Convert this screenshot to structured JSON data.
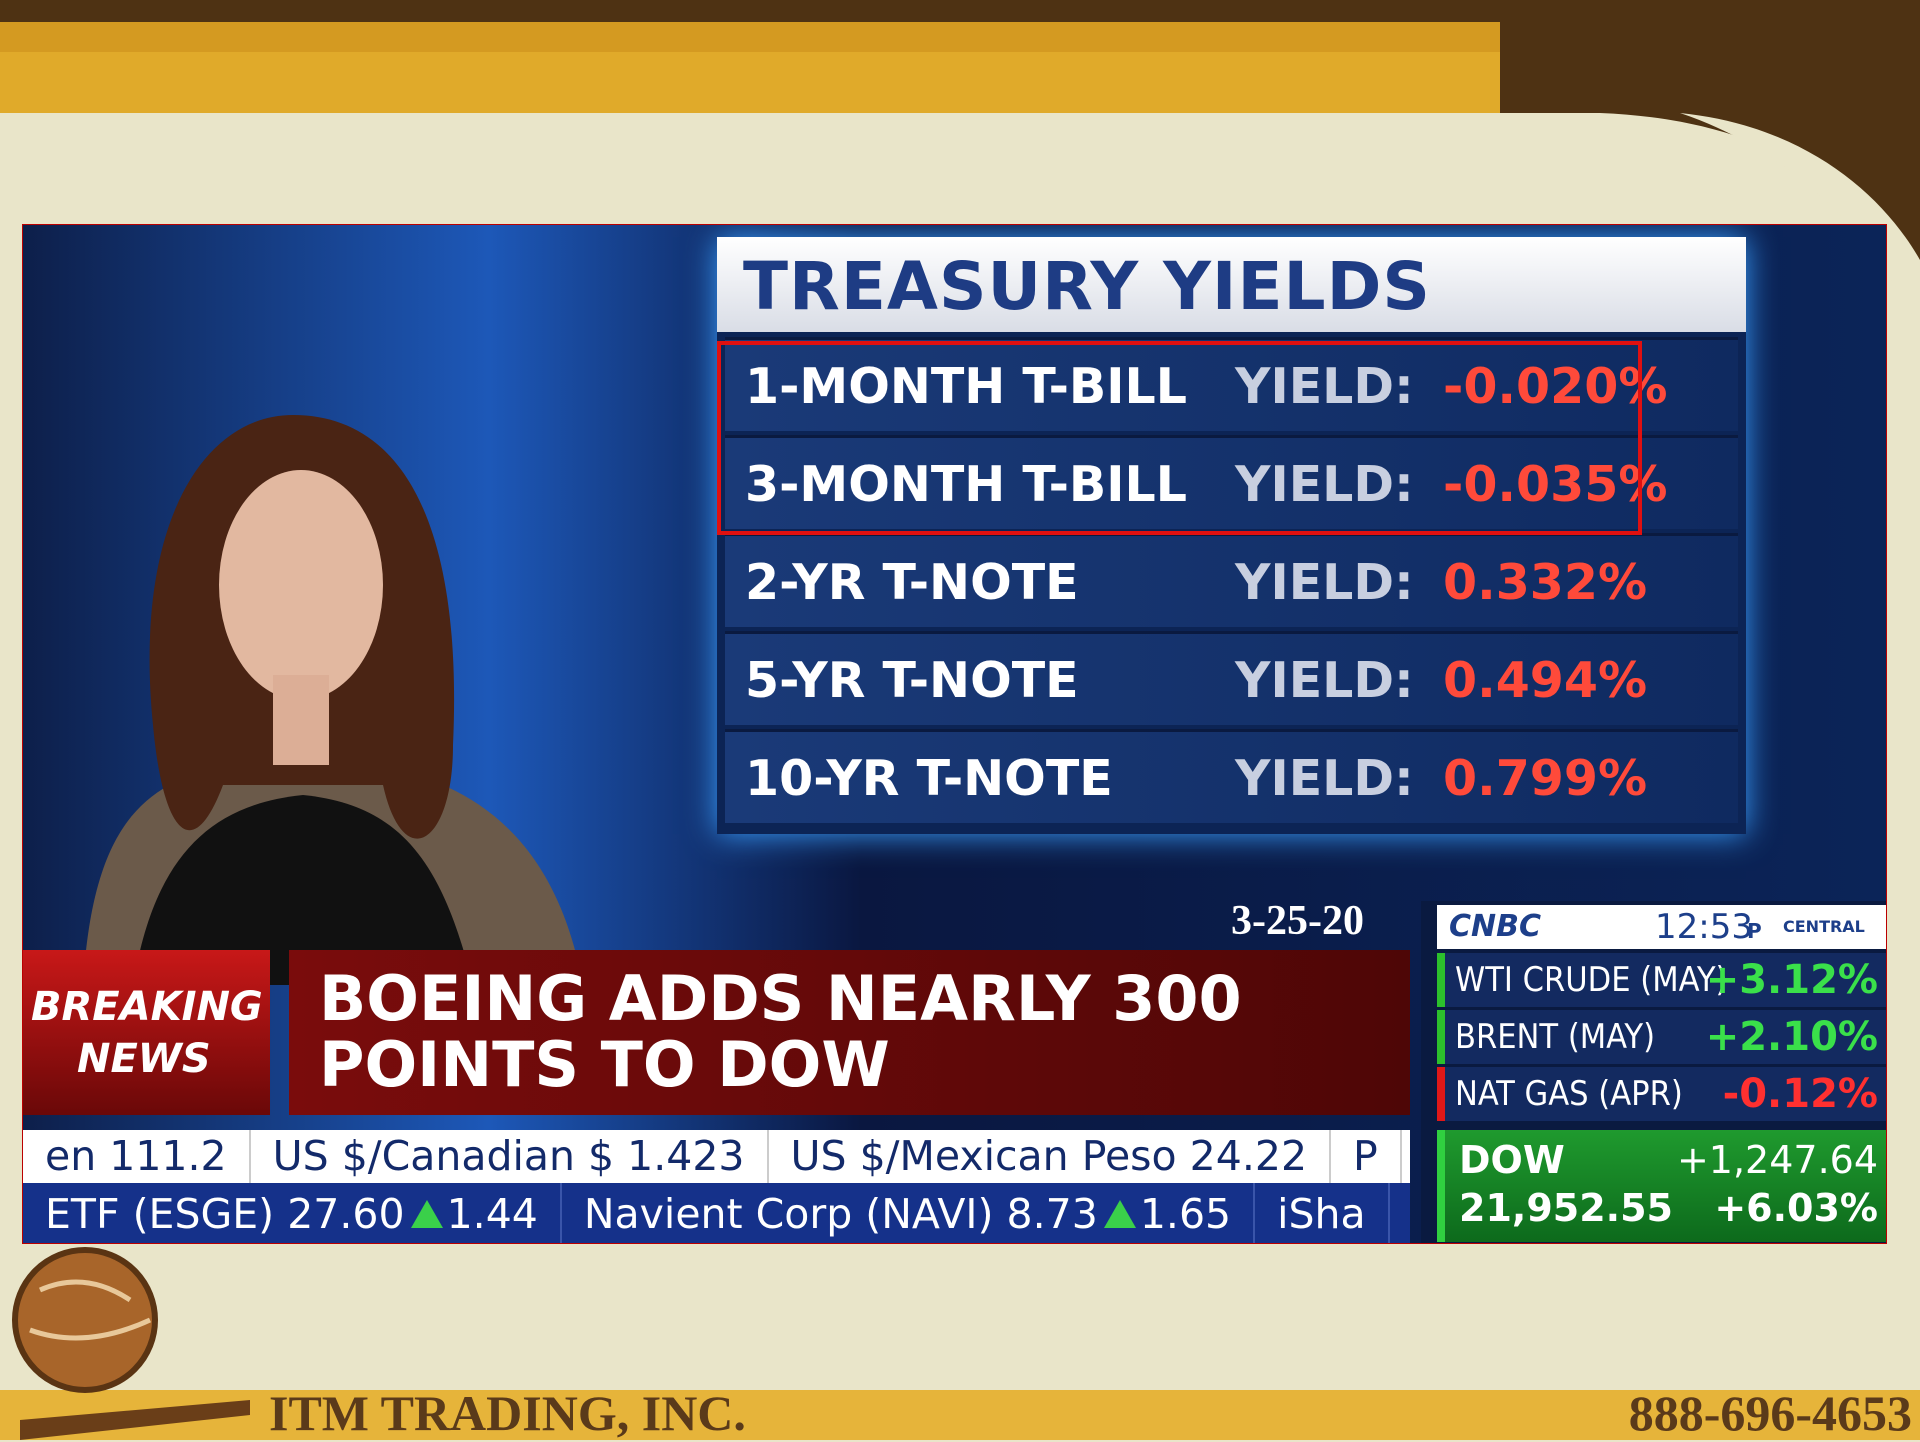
{
  "footer": {
    "company": "ITM TRADING, INC.",
    "phone": "888-696-4653"
  },
  "treasury": {
    "title": "TREASURY YIELDS",
    "rows": [
      {
        "name": "1-MONTH T-BILL",
        "label": "YIELD:",
        "value": "-0.020%"
      },
      {
        "name": "3-MONTH T-BILL",
        "label": "YIELD:",
        "value": "-0.035%"
      },
      {
        "name": "2-YR T-NOTE",
        "label": "YIELD:",
        "value": "0.332%"
      },
      {
        "name": "5-YR T-NOTE",
        "label": "YIELD:",
        "value": "0.494%"
      },
      {
        "name": "10-YR T-NOTE",
        "label": "YIELD:",
        "value": "0.799%"
      }
    ]
  },
  "date": "3-25-20",
  "breaking": {
    "line1": "BREAKING",
    "line2": "NEWS"
  },
  "headline": [
    "BOEING ADDS NEARLY 300",
    "POINTS TO DOW"
  ],
  "ticker": {
    "row1": [
      "en 111.2",
      "US $/Canadian $ 1.423",
      "US $/Mexican Peso 24.22",
      "P"
    ],
    "row2": [
      {
        "text": "ETF (ESGE) 27.60",
        "change": "1.44"
      },
      {
        "text": "Navient Corp (NAVI) 8.73",
        "change": "1.65"
      },
      {
        "text": "iSha"
      }
    ]
  },
  "cnbc": {
    "logo": "CNBC",
    "time": "12:53",
    "ampm": "P",
    "zone": "CENTRAL",
    "commodities": [
      {
        "name": "WTI CRUDE (MAY)",
        "change": "+3.12%"
      },
      {
        "name": "BRENT (MAY)",
        "change": "+2.10%"
      },
      {
        "name": "NAT GAS (APR)",
        "change": "-0.12%"
      }
    ],
    "dow": {
      "label": "DOW",
      "value": "21,952.55",
      "change": "+1,247.64",
      "percent": "+6.03%"
    }
  }
}
